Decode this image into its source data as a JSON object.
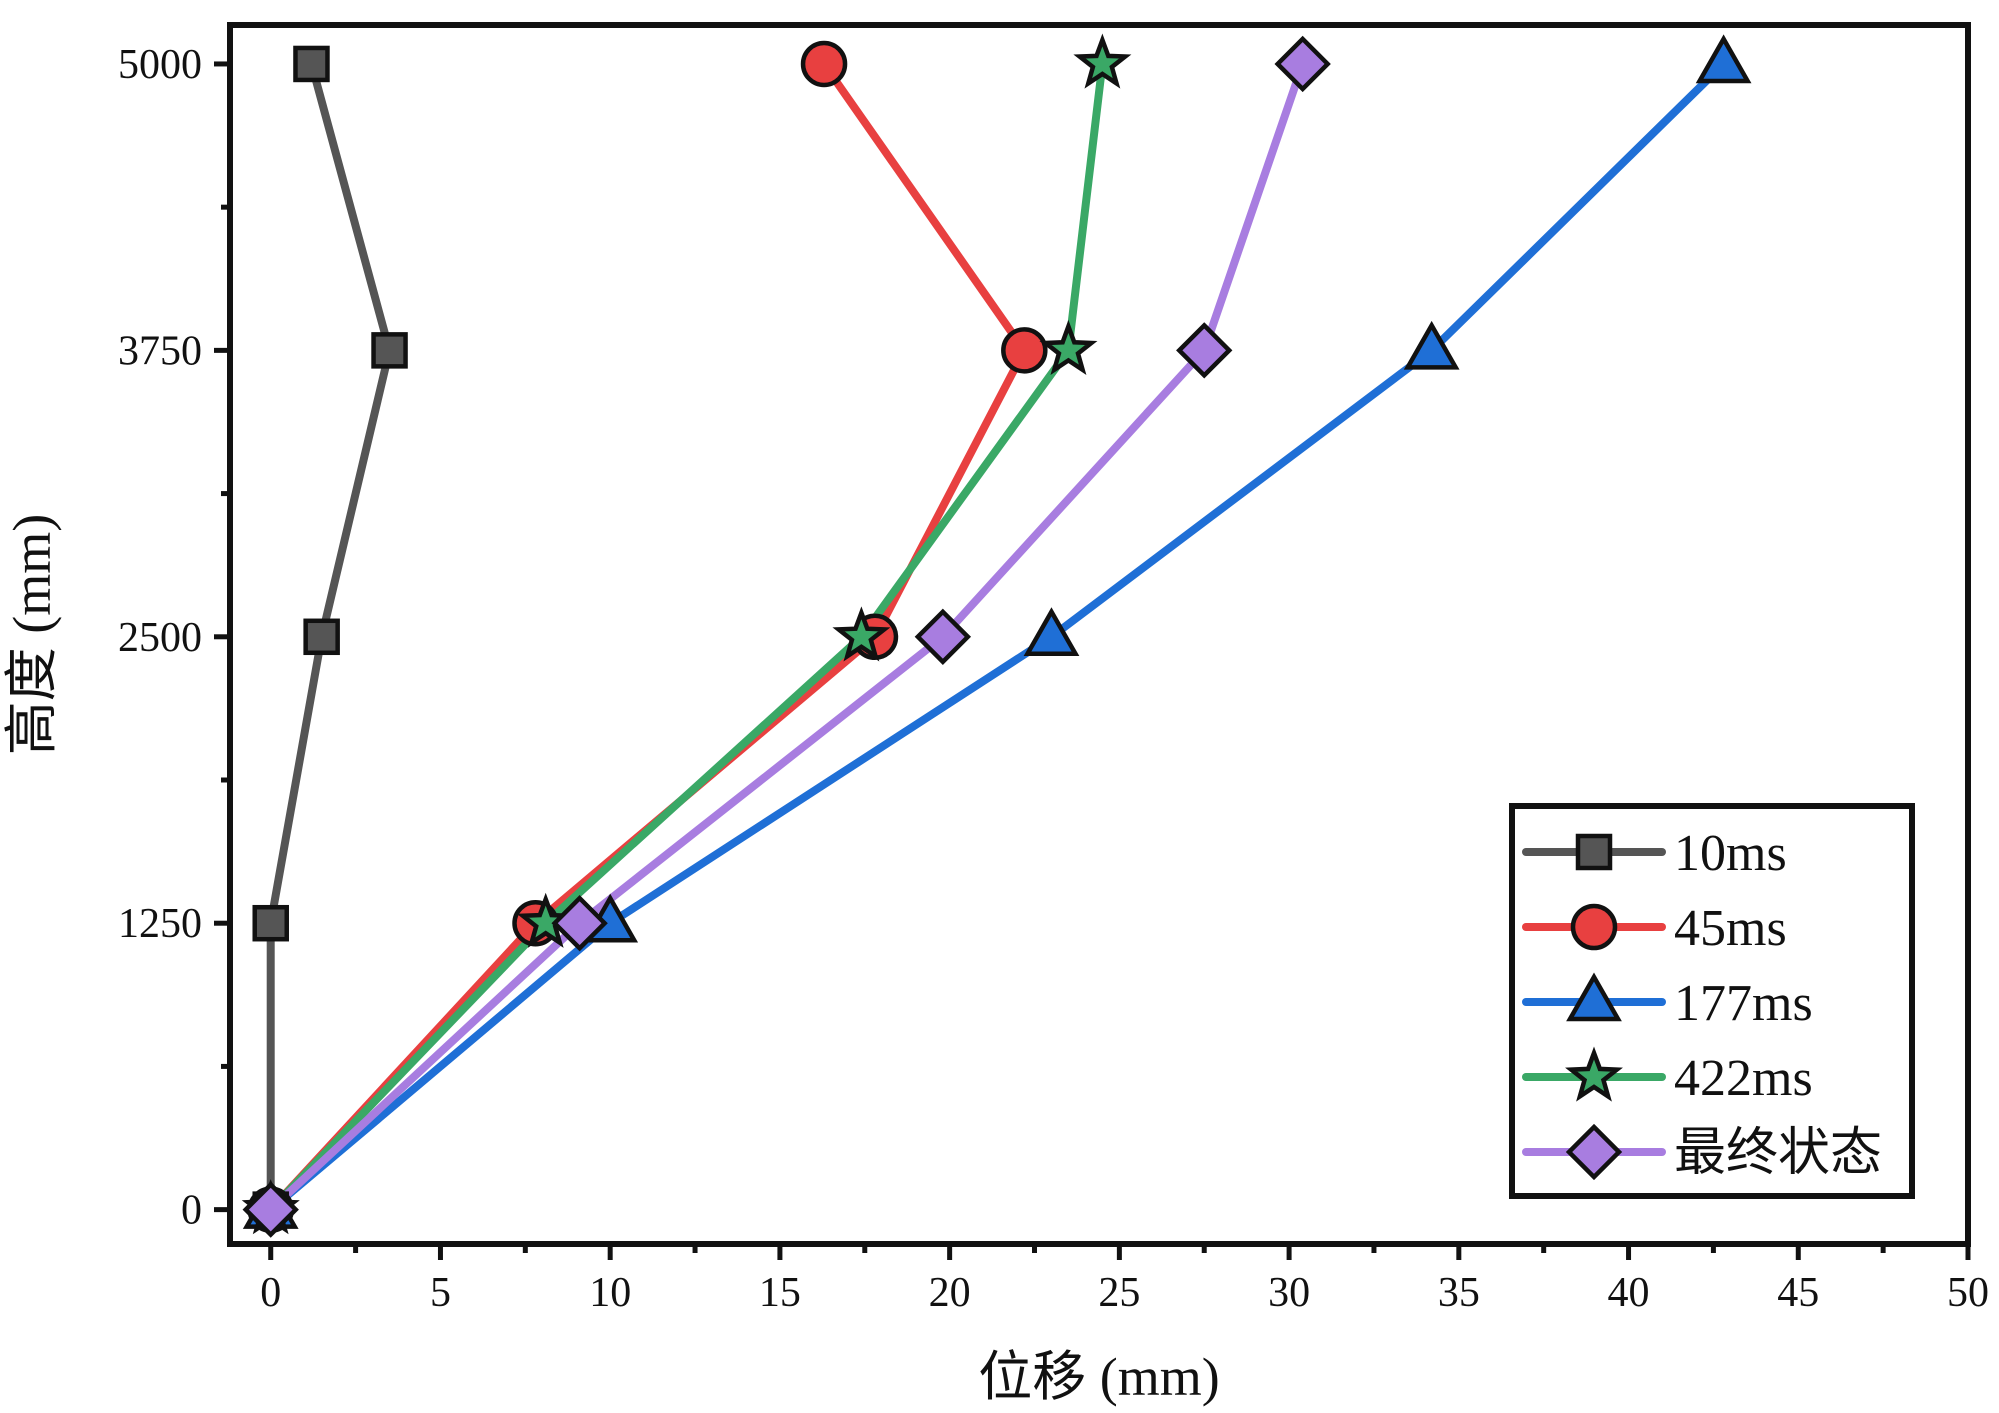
{
  "chart_data": {
    "type": "line",
    "title": "",
    "xlabel": "位移 (mm)",
    "ylabel": "高度 (mm)",
    "xlim": [
      -1.2,
      50
    ],
    "ylim": [
      -150,
      5170
    ],
    "xticks": [
      0,
      5,
      10,
      15,
      20,
      25,
      30,
      35,
      40,
      45,
      50
    ],
    "xtick_labels": [
      "0",
      "5",
      "10",
      "15",
      "20",
      "25",
      "30",
      "35",
      "40",
      "45",
      "50"
    ],
    "yticks": [
      0,
      1250,
      2500,
      3750,
      5000
    ],
    "ytick_labels": [
      "0",
      "1250",
      "2500",
      "3750",
      "5000"
    ],
    "grid": false,
    "legend_position": "bottom-right",
    "series": [
      {
        "name": "10ms",
        "color": "#555555",
        "marker": "square",
        "points": [
          [
            0.0,
            0
          ],
          [
            0.0,
            1250
          ],
          [
            1.5,
            2500
          ],
          [
            3.5,
            3750
          ],
          [
            1.2,
            5000
          ]
        ]
      },
      {
        "name": "45ms",
        "color": "#e84040",
        "marker": "circle",
        "points": [
          [
            0.0,
            0
          ],
          [
            7.8,
            1250
          ],
          [
            17.8,
            2500
          ],
          [
            22.2,
            3750
          ],
          [
            16.3,
            5000
          ]
        ]
      },
      {
        "name": "177ms",
        "color": "#1f6fd6",
        "marker": "triangle",
        "points": [
          [
            0.0,
            0
          ],
          [
            10.0,
            1250
          ],
          [
            23.0,
            2500
          ],
          [
            34.2,
            3750
          ],
          [
            42.8,
            5000
          ]
        ]
      },
      {
        "name": "422ms",
        "color": "#3aa866",
        "marker": "star",
        "points": [
          [
            0.0,
            0
          ],
          [
            8.1,
            1250
          ],
          [
            17.4,
            2500
          ],
          [
            23.5,
            3750
          ],
          [
            24.5,
            5000
          ]
        ]
      },
      {
        "name": "最终状态",
        "color": "#a87de0",
        "marker": "diamond",
        "points": [
          [
            0.0,
            0
          ],
          [
            9.1,
            1250
          ],
          [
            19.8,
            2500
          ],
          [
            27.5,
            3750
          ],
          [
            30.4,
            5000
          ]
        ]
      }
    ]
  }
}
